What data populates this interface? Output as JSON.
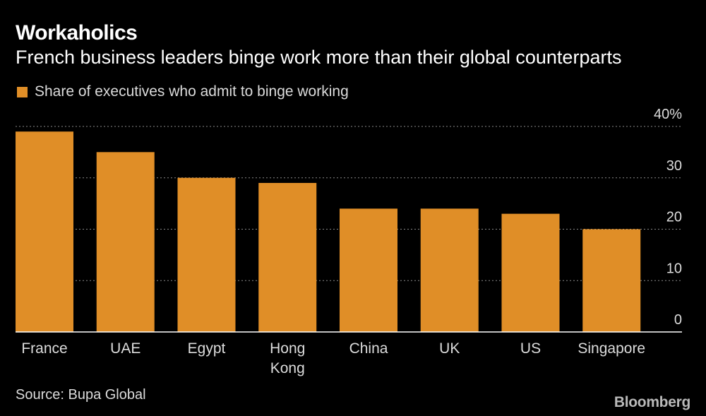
{
  "header": {
    "title": "Workaholics",
    "subtitle": "French business leaders binge work more than their global counterparts"
  },
  "legend": {
    "label": "Share of executives who admit to binge working"
  },
  "footer": {
    "source": "Source: Bupa Global",
    "brand": "Bloomberg"
  },
  "colors": {
    "bar": "#e08e27",
    "background": "#000000",
    "grid": "#8a8a8a",
    "text": "#dcdcdc"
  },
  "chart_data": {
    "type": "bar",
    "title": "Workaholics",
    "subtitle": "French business leaders binge work more than their global counterparts",
    "categories": [
      "France",
      "UAE",
      "Egypt",
      "Hong Kong",
      "China",
      "UK",
      "US",
      "Singapore"
    ],
    "category_lines": [
      [
        "France"
      ],
      [
        "UAE"
      ],
      [
        "Egypt"
      ],
      [
        "Hong",
        "Kong"
      ],
      [
        "China"
      ],
      [
        "UK"
      ],
      [
        "US"
      ],
      [
        "Singapore"
      ]
    ],
    "series": [
      {
        "name": "Share of executives who admit to binge working",
        "values": [
          39,
          35,
          30,
          29,
          24,
          24,
          23,
          20
        ]
      }
    ],
    "ylim": [
      0,
      40
    ],
    "yticks": [
      0,
      10,
      20,
      30,
      40
    ],
    "ytick_labels": [
      "0",
      "10",
      "20",
      "30",
      "40%"
    ],
    "y_axis_side": "right",
    "grid": true,
    "legend_position": "top-left"
  }
}
